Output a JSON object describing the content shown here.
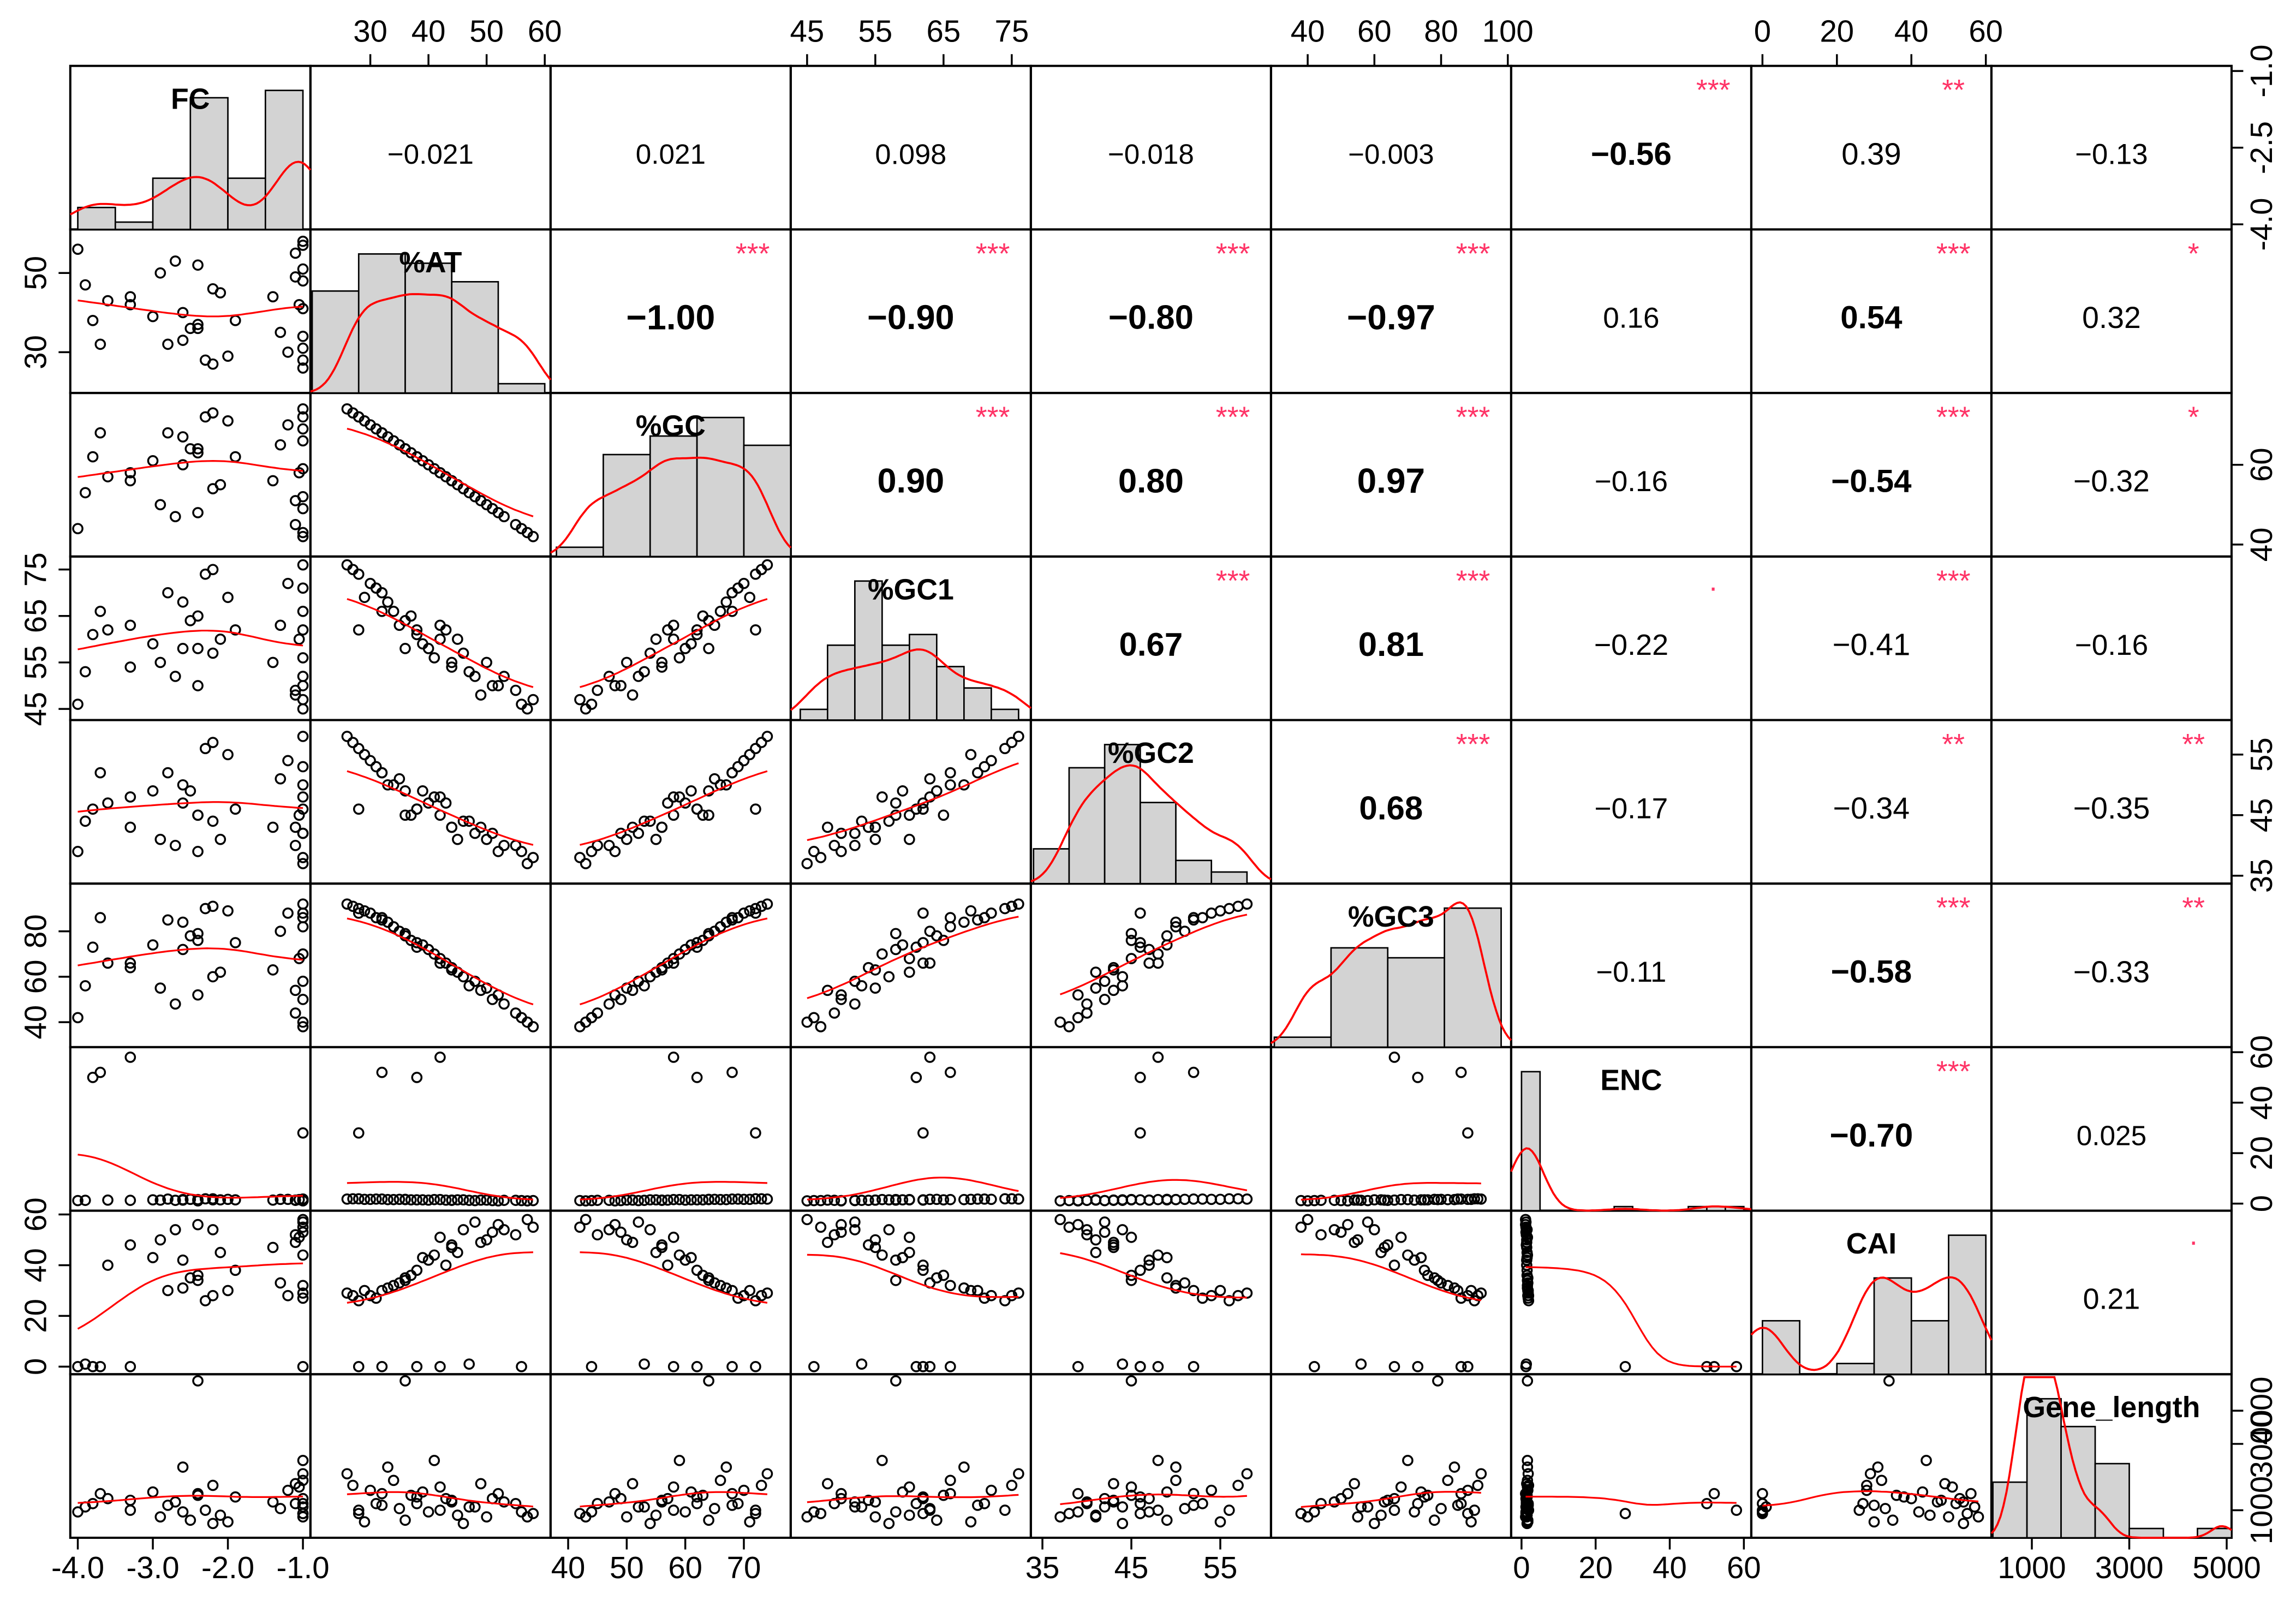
{
  "chart_data": {
    "type": "scatter_matrix",
    "variables": [
      {
        "name": "FC",
        "lim": [
          -4.1,
          -0.9
        ],
        "xticks": [
          {
            "value": -4,
            "label": "-4.0"
          },
          {
            "value": -3,
            "label": "-3.0"
          },
          {
            "value": -2,
            "label": "-2.0"
          },
          {
            "value": -1,
            "label": "-1.0"
          }
        ],
        "yticks": [
          {
            "value": -4,
            "label": "-4.0"
          },
          -2.5,
          {
            "value": -1,
            "label": "-1.0"
          }
        ],
        "bins": [
          -4,
          -3.5,
          -3,
          -2.5,
          -2,
          -1.5,
          -1
        ],
        "counts": [
          3,
          1,
          7,
          18,
          7,
          19
        ]
      },
      {
        "name": "%AT",
        "lim": [
          19.7,
          61
        ],
        "xticks": [
          30,
          40,
          50,
          60
        ],
        "yticks": [
          30,
          50
        ],
        "bins": [
          20,
          28,
          36,
          44,
          52,
          60
        ],
        "counts": [
          11,
          15,
          14,
          12,
          1
        ]
      },
      {
        "name": "%GC",
        "lim": [
          37,
          78
        ],
        "xticks": [
          40,
          50,
          60,
          70
        ],
        "yticks": [
          40,
          60
        ],
        "bins": [
          38,
          46,
          54,
          62,
          70,
          78
        ],
        "counts": [
          1,
          11,
          13,
          15,
          12
        ]
      },
      {
        "name": "%GC1",
        "lim": [
          42.6,
          77.8
        ],
        "xticks": [
          45,
          55,
          65,
          75
        ],
        "yticks": [
          45,
          55,
          65,
          75
        ],
        "bins": [
          44,
          48,
          52,
          56,
          60,
          64,
          68,
          72,
          76
        ],
        "counts": [
          1,
          7,
          13,
          7,
          8,
          5,
          3,
          1
        ]
      },
      {
        "name": "%GC2",
        "lim": [
          33.7,
          60.7
        ],
        "xticks": [
          35,
          45,
          55
        ],
        "yticks": [
          35,
          45,
          55
        ],
        "bins": [
          34,
          38,
          42,
          46,
          50,
          54,
          58
        ],
        "counts": [
          3,
          10,
          12,
          7,
          2,
          1
        ]
      },
      {
        "name": "%GC3",
        "lim": [
          29,
          101
        ],
        "xticks": [
          40,
          60,
          80,
          100
        ],
        "yticks": [
          40,
          60,
          80
        ],
        "bins": [
          30,
          47,
          64,
          81,
          98
        ],
        "counts": [
          1,
          10,
          9,
          14
        ]
      },
      {
        "name": "ENC",
        "lim": [
          -2.8,
          62
        ],
        "xticks": [
          0,
          20,
          40,
          60
        ],
        "yticks": [
          0,
          20,
          40,
          60
        ],
        "bins": [
          0,
          5,
          10,
          15,
          20,
          25,
          30,
          35,
          40,
          45,
          50,
          55,
          60
        ],
        "counts": [
          34,
          0,
          0,
          0,
          0,
          1,
          0,
          0,
          0,
          1,
          1,
          1
        ]
      },
      {
        "name": "CAI",
        "lim": [
          -3,
          61.5
        ],
        "xticks": [
          0,
          20,
          40,
          60
        ],
        "yticks": [
          0,
          20,
          40,
          60
        ],
        "bins": [
          0,
          10,
          20,
          30,
          40,
          50,
          60
        ],
        "counts": [
          5,
          0,
          1,
          9,
          5,
          13
        ]
      },
      {
        "name": "Gene_length",
        "lim": [
          170,
          5100
        ],
        "xticks": [
          1000,
          3000,
          5000
        ],
        "yticks": [
          1000,
          3000,
          4000
        ],
        "bins": [
          200,
          900,
          1600,
          2300,
          3000,
          3700,
          4400,
          5100
        ],
        "counts": [
          6,
          15,
          12,
          8,
          1,
          0,
          1
        ]
      }
    ],
    "observations": [
      [
        -1.0,
        58,
        42,
        47,
        38,
        38,
        1.2,
        55,
        900
      ],
      [
        -1.1,
        55,
        45,
        49,
        40,
        44,
        1.3,
        52,
        1200
      ],
      [
        -2.4,
        52,
        48,
        50,
        39,
        52,
        1.1,
        56,
        1500
      ],
      [
        -2.9,
        50,
        50,
        55,
        41,
        55,
        1.4,
        50,
        800
      ],
      [
        -1.0,
        48,
        52,
        52,
        42,
        58,
        1.2,
        57,
        1100
      ],
      [
        -2.2,
        46,
        54,
        57,
        44,
        60,
        1.5,
        54,
        600
      ],
      [
        -3.3,
        44,
        56,
        54,
        43,
        64,
        1.3,
        48,
        1300
      ],
      [
        -1.05,
        42,
        58,
        60,
        45,
        68,
        1.6,
        51,
        1700
      ],
      [
        -2.6,
        40,
        60,
        58,
        47,
        72,
        1.4,
        42,
        950
      ],
      [
        -1.9,
        38,
        62,
        62,
        46,
        75,
        1.5,
        38,
        1400
      ],
      [
        -2.5,
        36,
        64,
        64,
        49,
        78,
        1.7,
        35,
        700
      ],
      [
        -1.0,
        34,
        66,
        66,
        50,
        82,
        1.6,
        32,
        1900
      ],
      [
        -2.8,
        32,
        68,
        70,
        52,
        85,
        1.8,
        30,
        1150
      ],
      [
        -1.2,
        30,
        70,
        72,
        54,
        88,
        1.7,
        28,
        1600
      ],
      [
        -2.3,
        28,
        72,
        74,
        56,
        90,
        1.9,
        26,
        1000
      ],
      [
        -1.0,
        26,
        74,
        76,
        58,
        92,
        1.8,
        29,
        2100
      ],
      [
        -2.7,
        53,
        47,
        52,
        40,
        48,
        1.3,
        54,
        1250
      ],
      [
        -1.1,
        49,
        51,
        48,
        43,
        54,
        1.4,
        49,
        1800
      ],
      [
        -2.1,
        45,
        55,
        60,
        41,
        62,
        1.5,
        45,
        850
      ],
      [
        -3.6,
        43,
        57,
        62,
        47,
        66,
        1.4,
        40,
        1350
      ],
      [
        -1.0,
        41,
        59,
        56,
        48,
        70,
        1.6,
        44,
        2500
      ],
      [
        -2.4,
        37,
        63,
        65,
        45,
        76,
        1.5,
        36,
        1450
      ],
      [
        -1.3,
        35,
        65,
        63,
        51,
        80,
        1.7,
        33,
        1050
      ],
      [
        -2.6,
        33,
        67,
        68,
        50,
        84,
        1.6,
        31,
        2300
      ],
      [
        -1.0,
        31,
        69,
        71,
        53,
        86,
        1.8,
        27,
        1200
      ],
      [
        -2.0,
        29,
        71,
        69,
        55,
        89,
        1.7,
        30,
        650
      ],
      [
        -4.0,
        56,
        44,
        46,
        39,
        42,
        1.2,
        0,
        950
      ],
      [
        -3.9,
        47,
        53,
        53,
        44,
        56,
        1.3,
        1,
        1100
      ],
      [
        -3.0,
        39,
        61,
        59,
        49,
        74,
        1.5,
        43,
        1550
      ],
      [
        -1.0,
        51,
        49,
        50,
        42,
        50,
        1.2,
        53,
        1350
      ],
      [
        -2.2,
        27,
        73,
        75,
        57,
        91,
        1.9,
        28,
        1750
      ],
      [
        -1.0,
        57,
        43,
        45,
        37,
        40,
        1.1,
        58,
        800
      ],
      [
        -3.8,
        38,
        62,
        61,
        46,
        73,
        50,
        0,
        1200
      ],
      [
        -3.7,
        32,
        68,
        66,
        52,
        86,
        52,
        0,
        1500
      ],
      [
        -3.3,
        42,
        58,
        63,
        48,
        66,
        58,
        0,
        1000
      ],
      [
        -1.0,
        28,
        72,
        62,
        46,
        88,
        28,
        0,
        900
      ],
      [
        -2.4,
        36,
        64,
        58,
        45,
        79,
        1.6,
        34,
        4900
      ],
      [
        -1.4,
        44,
        56,
        55,
        43,
        63,
        1.4,
        47,
        1250
      ]
    ],
    "correlations": {
      "values": [
        -0.021,
        0.021,
        0.098,
        -0.018,
        -0.003,
        -0.56,
        0.39,
        -0.13,
        -1.0,
        -0.9,
        -0.8,
        -0.97,
        0.16,
        0.54,
        0.32,
        0.9,
        0.8,
        0.97,
        -0.16,
        -0.54,
        -0.32,
        0.67,
        0.81,
        -0.22,
        -0.41,
        -0.16,
        0.68,
        -0.17,
        -0.34,
        -0.35,
        -0.11,
        -0.58,
        -0.33,
        -0.7,
        0.025,
        0.21
      ],
      "value_labels": [
        "−0.021",
        "0.021",
        "0.098",
        "−0.018",
        "−0.003",
        "−0.56",
        "0.39",
        "−0.13",
        "−1.00",
        "−0.90",
        "−0.80",
        "−0.97",
        "0.16",
        "0.54",
        "0.32",
        "0.90",
        "0.80",
        "0.97",
        "−0.16",
        "−0.54",
        "−0.32",
        "0.67",
        "0.81",
        "−0.22",
        "−0.41",
        "−0.16",
        "0.68",
        "−0.17",
        "−0.34",
        "−0.35",
        "−0.11",
        "−0.58",
        "−0.33",
        "−0.70",
        "0.025",
        "0.21"
      ],
      "stars": [
        null,
        null,
        null,
        null,
        null,
        "***",
        "**",
        null,
        "***",
        "***",
        "***",
        "***",
        null,
        "***",
        "*",
        "***",
        "***",
        "***",
        null,
        "***",
        "*",
        "***",
        "***",
        ".",
        "***",
        null,
        "***",
        null,
        "**",
        "**",
        null,
        "***",
        "**",
        "***",
        null,
        "."
      ]
    },
    "point_color": "#000000",
    "line_color": "#ff0000",
    "star_color": "#ff3366",
    "hist_color": "#d3d3d3"
  }
}
